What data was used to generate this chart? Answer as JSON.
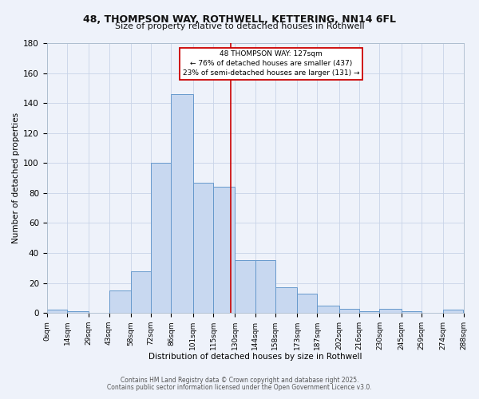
{
  "title_line1": "48, THOMPSON WAY, ROTHWELL, KETTERING, NN14 6FL",
  "title_line2": "Size of property relative to detached houses in Rothwell",
  "xlabel": "Distribution of detached houses by size in Rothwell",
  "ylabel": "Number of detached properties",
  "bin_edges": [
    0,
    14,
    29,
    43,
    58,
    72,
    86,
    101,
    115,
    130,
    144,
    158,
    173,
    187,
    202,
    216,
    230,
    245,
    259,
    274,
    288
  ],
  "bin_counts": [
    2,
    1,
    0,
    15,
    28,
    100,
    146,
    87,
    84,
    35,
    35,
    17,
    13,
    5,
    3,
    1,
    3,
    1,
    0,
    2
  ],
  "bar_color": "#c8d8f0",
  "bar_edge_color": "#6699cc",
  "grid_color": "#c8d4e8",
  "background_color": "#eef2fa",
  "vline_x": 127,
  "vline_color": "#cc0000",
  "annotation_title": "48 THOMPSON WAY: 127sqm",
  "annotation_line1": "← 76% of detached houses are smaller (437)",
  "annotation_line2": "23% of semi-detached houses are larger (131) →",
  "annotation_box_color": "#ffffff",
  "annotation_box_edge": "#cc0000",
  "tick_labels": [
    "0sqm",
    "14sqm",
    "29sqm",
    "43sqm",
    "58sqm",
    "72sqm",
    "86sqm",
    "101sqm",
    "115sqm",
    "130sqm",
    "144sqm",
    "158sqm",
    "173sqm",
    "187sqm",
    "202sqm",
    "216sqm",
    "230sqm",
    "245sqm",
    "259sqm",
    "274sqm",
    "288sqm"
  ],
  "ylim": [
    0,
    180
  ],
  "yticks": [
    0,
    20,
    40,
    60,
    80,
    100,
    120,
    140,
    160,
    180
  ],
  "footnote1": "Contains HM Land Registry data © Crown copyright and database right 2025.",
  "footnote2": "Contains public sector information licensed under the Open Government Licence v3.0."
}
